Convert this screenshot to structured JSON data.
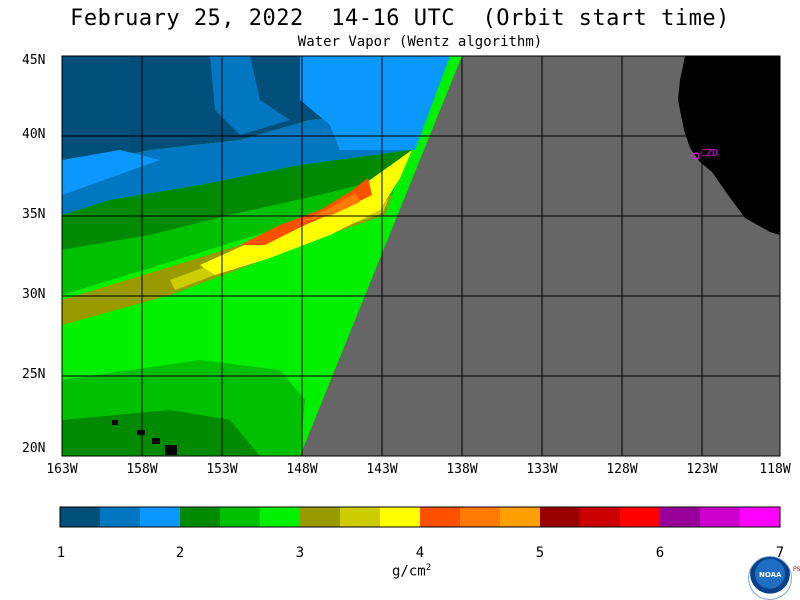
{
  "header": {
    "title": "February 25, 2022  14-16 UTC  (Orbit start time)",
    "subtitle": "Water Vapor (Wentz algorithm)"
  },
  "map": {
    "lat_labels": [
      "45N",
      "40N",
      "35N",
      "30N",
      "25N",
      "20N"
    ],
    "lon_labels": [
      "163W",
      "158W",
      "153W",
      "148W",
      "143W",
      "138W",
      "133W",
      "128W",
      "123W",
      "118W"
    ],
    "station_label": "CZD",
    "colors": {
      "no_data": "#666666",
      "land": "#000000",
      "grid": "#000000",
      "station": "#ff00ff"
    }
  },
  "colorbar": {
    "ticks": [
      "1",
      "2",
      "3",
      "4",
      "5",
      "6",
      "7"
    ],
    "unit": "g/cm",
    "unit_power": "2",
    "colors": [
      "#004e7a",
      "#0077c0",
      "#0a98ff",
      "#008a00",
      "#00c000",
      "#00f000",
      "#999900",
      "#cccc00",
      "#ffff00",
      "#ff5000",
      "#ff7a00",
      "#ffa000",
      "#990000",
      "#cc0000",
      "#ff0000",
      "#990099",
      "#cc00cc",
      "#ff00ff"
    ]
  },
  "logo": {
    "name": "noaa-logo",
    "text": "NOAA",
    "side_text": "PSL"
  }
}
